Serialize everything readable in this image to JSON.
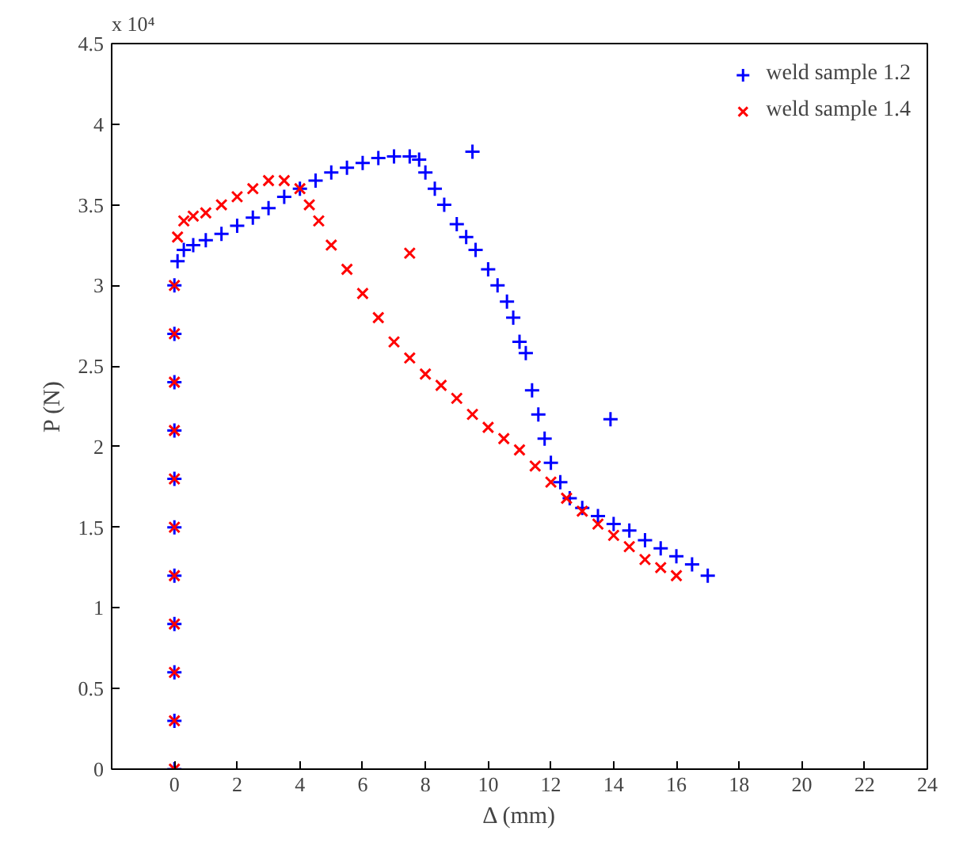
{
  "chart_data": {
    "type": "scatter",
    "xlabel": "Δ (mm)",
    "ylabel": "P (N)",
    "annotations": [
      "x 10⁴"
    ],
    "xlim": [
      -2,
      24
    ],
    "xticks": [
      0,
      2,
      4,
      6,
      8,
      10,
      12,
      14,
      16,
      18,
      20,
      22,
      24
    ],
    "ylim": [
      0,
      4.5
    ],
    "yticks": [
      0,
      0.5,
      1,
      1.5,
      2,
      2.5,
      3,
      3.5,
      4,
      4.5
    ],
    "grid": false,
    "legend": "top right",
    "series": [
      {
        "name": "weld sample 1.2",
        "color": "#0000ff",
        "marker": "cross",
        "x": [
          0,
          0,
          0,
          0,
          0,
          0,
          0,
          0,
          0,
          0,
          0,
          0.1,
          0.3,
          0.6,
          1,
          1.5,
          2,
          2.5,
          3,
          3.5,
          4,
          4.5,
          5,
          5.5,
          6,
          6.5,
          7,
          7.5,
          7.8,
          8,
          8.3,
          8.6,
          9,
          9.3,
          9.6,
          10,
          10.3,
          10.6,
          10.8,
          11,
          11.2,
          11.4,
          11.6,
          11.8,
          12,
          12.3,
          12.6,
          13,
          13.5,
          14,
          14.5,
          15,
          15.5,
          16,
          16.5,
          17,
          9.5,
          13.9
        ],
        "values": [
          0,
          0.3,
          0.6,
          0.9,
          1.2,
          1.5,
          1.8,
          2.1,
          2.4,
          2.7,
          3.0,
          3.15,
          3.22,
          3.25,
          3.28,
          3.32,
          3.37,
          3.42,
          3.48,
          3.55,
          3.6,
          3.65,
          3.7,
          3.73,
          3.76,
          3.79,
          3.8,
          3.8,
          3.78,
          3.7,
          3.6,
          3.5,
          3.38,
          3.3,
          3.22,
          3.1,
          3.0,
          2.9,
          2.8,
          2.65,
          2.58,
          2.35,
          2.2,
          2.05,
          1.9,
          1.78,
          1.68,
          1.62,
          1.57,
          1.52,
          1.48,
          1.42,
          1.37,
          1.32,
          1.27,
          1.2,
          3.83,
          2.17
        ]
      },
      {
        "name": "weld sample 1.4",
        "color": "#ff0000",
        "marker": "x",
        "x": [
          0,
          0,
          0,
          0,
          0,
          0,
          0,
          0,
          0,
          0,
          0,
          0.1,
          0.3,
          0.6,
          1,
          1.5,
          2,
          2.5,
          3,
          3.5,
          4,
          4.3,
          4.6,
          5,
          5.5,
          6,
          6.5,
          7,
          7.5,
          8,
          8.5,
          9,
          9.5,
          10,
          10.5,
          11,
          11.5,
          12,
          12.5,
          13,
          13.5,
          14,
          14.5,
          15,
          15.5,
          16,
          7.5
        ],
        "values": [
          0,
          0.3,
          0.6,
          0.9,
          1.2,
          1.5,
          1.8,
          2.1,
          2.4,
          2.7,
          3.0,
          3.3,
          3.4,
          3.43,
          3.45,
          3.5,
          3.55,
          3.6,
          3.65,
          3.65,
          3.6,
          3.5,
          3.4,
          3.25,
          3.1,
          2.95,
          2.8,
          2.65,
          2.55,
          2.45,
          2.38,
          2.3,
          2.2,
          2.12,
          2.05,
          1.98,
          1.88,
          1.78,
          1.68,
          1.6,
          1.52,
          1.45,
          1.38,
          1.3,
          1.25,
          1.2,
          3.2
        ]
      }
    ]
  }
}
